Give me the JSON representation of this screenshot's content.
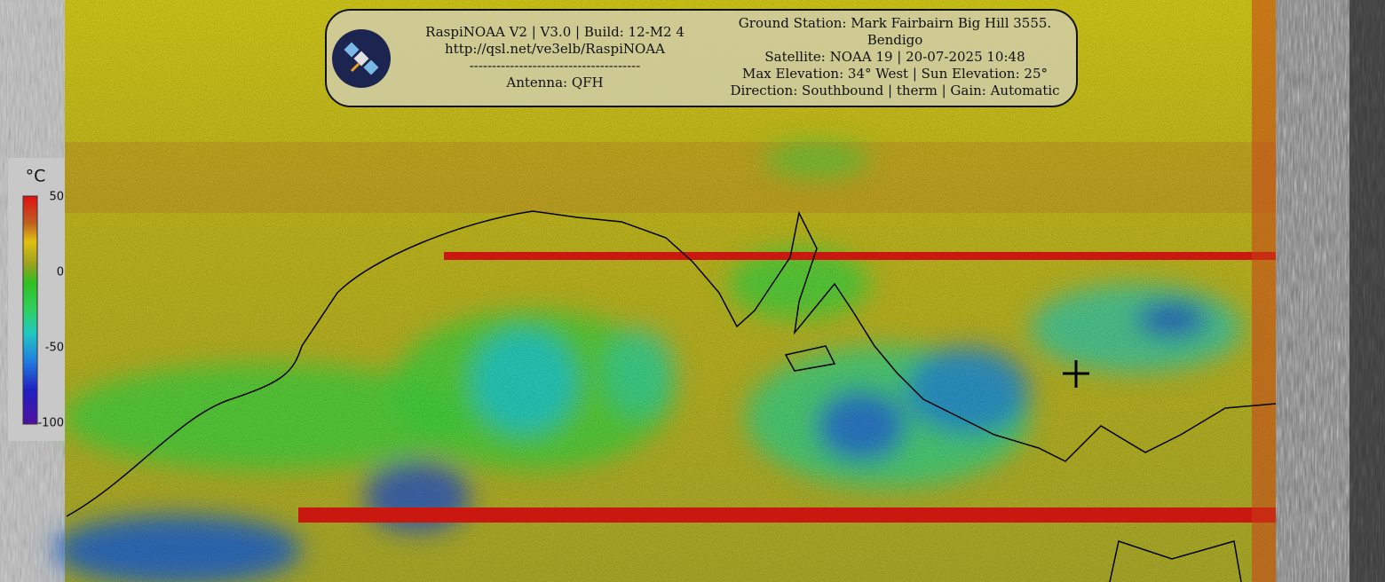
{
  "header": {
    "left": [
      "RaspiNOAA V2 | V3.0 | Build: 12-M2 4",
      "http://qsl.net/ve3elb/RaspiNOAA",
      "--------------------------------------",
      "Antenna: QFH"
    ],
    "right": [
      "Ground Station: Mark Fairbairn Big Hill 3555.",
      "Bendigo",
      "Satellite: NOAA 19 | 20-07-2025 10:48",
      "Max Elevation: 34° West | Sun Elevation: 25°",
      "Direction: Southbound | therm | Gain: Automatic"
    ]
  },
  "legend": {
    "unit": "°C",
    "ticks": [
      50,
      0,
      -50,
      -100
    ]
  }
}
